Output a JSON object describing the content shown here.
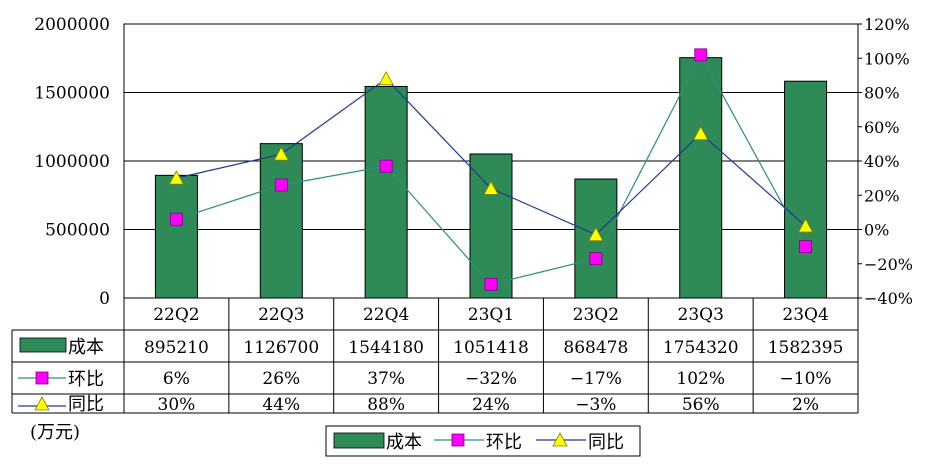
{
  "colors": {
    "bar": "#2e8b57",
    "bar_stroke": "#000000",
    "hb_line": "#2f8f73",
    "hb_marker": "#ff00ff",
    "tb_line": "#1f3a93",
    "tb_marker": "#ffff00",
    "grid": "#000000"
  },
  "chart_data": {
    "type": "bar",
    "categories": [
      "22Q2",
      "22Q3",
      "22Q4",
      "23Q1",
      "23Q2",
      "23Q3",
      "23Q4"
    ],
    "left_axis": {
      "min": 0,
      "max": 2000000,
      "step": 500000,
      "ticks": [
        "0",
        "500000",
        "1000000",
        "1500000",
        "2000000"
      ]
    },
    "right_axis": {
      "min": -40,
      "max": 120,
      "step": 20,
      "ticks": [
        "-40%",
        "-20%",
        "0%",
        "20%",
        "40%",
        "60%",
        "80%",
        "100%",
        "120%"
      ]
    },
    "unit_label": "(万元)",
    "series": [
      {
        "name": "成本",
        "kind": "bar",
        "axis": "left",
        "values": [
          895210,
          1126700,
          1544180,
          1051418,
          868478,
          1754320,
          1582395
        ],
        "labels": [
          "895210",
          "1126700",
          "1544180",
          "1051418",
          "868478",
          "1754320",
          "1582395"
        ]
      },
      {
        "name": "环比",
        "kind": "line",
        "axis": "right",
        "marker": "square",
        "values": [
          6,
          26,
          37,
          -32,
          -17,
          102,
          -10
        ],
        "labels": [
          "6%",
          "26%",
          "37%",
          "-32%",
          "-17%",
          "102%",
          "-10%"
        ]
      },
      {
        "name": "同比",
        "kind": "line",
        "axis": "right",
        "marker": "triangle",
        "values": [
          30,
          44,
          88,
          24,
          -3,
          56,
          2
        ],
        "labels": [
          "30%",
          "44%",
          "88%",
          "24%",
          "-3%",
          "56%",
          "2%"
        ]
      }
    ],
    "legend": {
      "placement": "bottom-center",
      "entries": [
        "成本",
        "环比",
        "同比"
      ]
    },
    "grid": true
  }
}
